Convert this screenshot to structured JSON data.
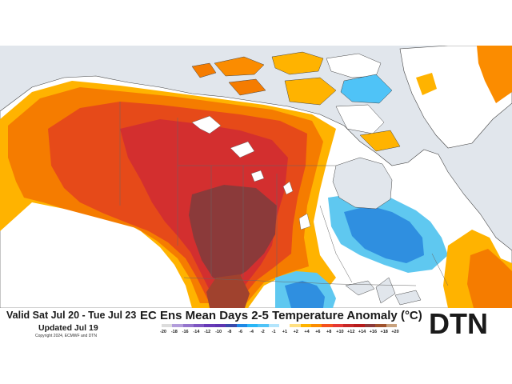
{
  "title": "EC Ens Mean Days 2-5 Temperature Anomaly (°C)",
  "valid_period": "Valid Sat Jul 20 - Tue Jul 23",
  "updated": "Updated Jul 19",
  "copyright": "Copyright 2024, ECMWF and DTN",
  "brand": "DTN",
  "legend": {
    "ticks": [
      "-20",
      "-18",
      "-16",
      "-14",
      "-12",
      "-10",
      "-8",
      "-6",
      "-4",
      "-2",
      "-1",
      "+1",
      "+2",
      "+4",
      "+6",
      "+8",
      "+10",
      "+12",
      "+14",
      "+16",
      "+18",
      "+20"
    ],
    "colors": [
      "#dcdcdc",
      "#b39ddb",
      "#9575cd",
      "#7e57c2",
      "#673ab7",
      "#5e35b1",
      "#3949ab",
      "#1e88e5",
      "#29b6f6",
      "#4fc3f7",
      "#b3e5fc",
      "#ffffff",
      "#ffe082",
      "#ffb300",
      "#fb8c00",
      "#f4511e",
      "#e53935",
      "#c62828",
      "#b71c1c",
      "#8d3a3a",
      "#a0522d",
      "#c9a27e"
    ]
  },
  "colors": {
    "ocean": "#e1e6ec",
    "land_neutral": "#ffffff",
    "warm_weak": "#ffb300",
    "warm_moderate": "#f57c00",
    "warm_strong": "#e64a19",
    "hot": "#d32f2f",
    "extreme": "#8b3a3a",
    "cool_weak": "#5fc8f0",
    "cool_moderate": "#2f8fe0",
    "lakes": "#ffffff"
  }
}
